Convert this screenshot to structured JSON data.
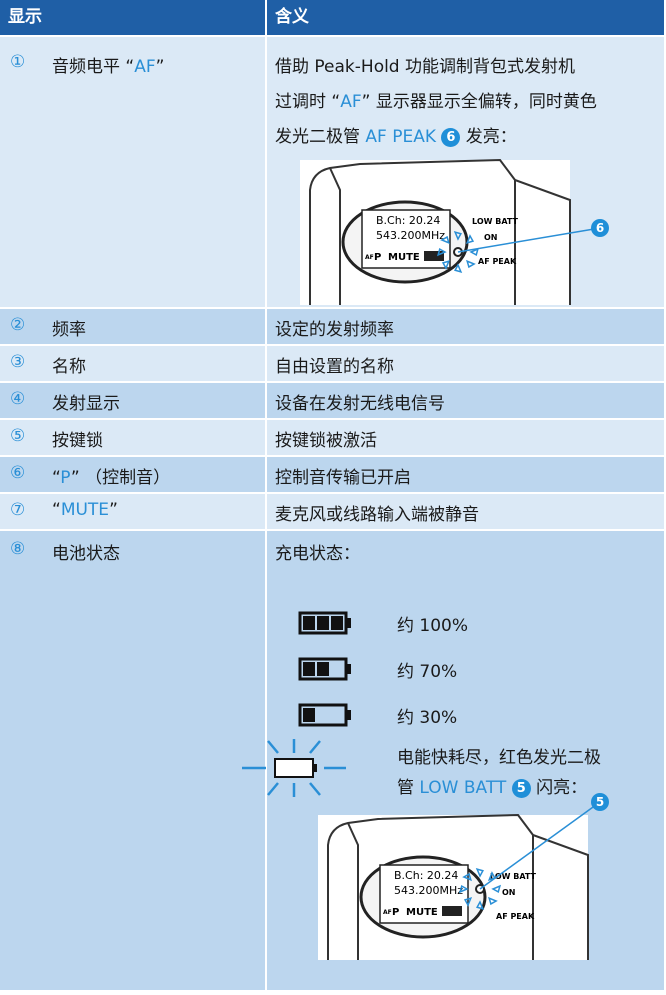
{
  "header": {
    "col1": "显示",
    "col2": "含义"
  },
  "rows": [
    {
      "number": "①",
      "label": [
        "音频电平 “",
        "AF",
        "”"
      ],
      "meaning": [
        "借助 Peak-Hold 功能调制背包式发射机",
        "过调时 “",
        "AF",
        "” 显示器显示全偏转，同时黄色",
        "发光二极管 ",
        "AF PEAK",
        "6",
        " 发亮："
      ],
      "illustration": {
        "screen1": "B.Ch: 20.24",
        "screen2": "543.200MHz",
        "af": "AF",
        "p": "P",
        "mute": "MUTE",
        "low_batt": "LOW BATT",
        "on": "ON",
        "af_peak": "AF PEAK",
        "callout": "6"
      }
    },
    {
      "number": "②",
      "label": [
        "频率"
      ],
      "meaning": [
        "设定的发射频率"
      ]
    },
    {
      "number": "③",
      "label": [
        "名称"
      ],
      "meaning": [
        "自由设置的名称"
      ]
    },
    {
      "number": "④",
      "label": [
        "发射显示"
      ],
      "meaning": [
        "设备在发射无线电信号"
      ]
    },
    {
      "number": "⑤",
      "label": [
        "按键锁"
      ],
      "meaning": [
        "按键锁被激活"
      ]
    },
    {
      "number": "⑥",
      "label": [
        "“",
        "P",
        "” （控制音）"
      ],
      "meaning": [
        "控制音传输已开启"
      ]
    },
    {
      "number": "⑦",
      "label": [
        "“",
        "MUTE",
        "”"
      ],
      "meaning": [
        "麦克风或线路输入端被静音"
      ]
    },
    {
      "number": "⑧",
      "label": [
        "电池状态"
      ],
      "meaning": [
        "充电状态："
      ],
      "battery": [
        "约 100%",
        "约 70%",
        "约 30%"
      ],
      "low_battery": [
        "电能快耗尽，红色发光二极",
        "管 ",
        "LOW BATT",
        "5",
        " 闪亮："
      ],
      "illustration": {
        "screen1": "B.Ch: 20.24",
        "screen2": "543.200MHz",
        "af": "AF",
        "p": "P",
        "mute": "MUTE",
        "low_batt": "LOW BATT",
        "on": "ON",
        "af_peak": "AF PEAK",
        "callout": "5"
      }
    }
  ]
}
